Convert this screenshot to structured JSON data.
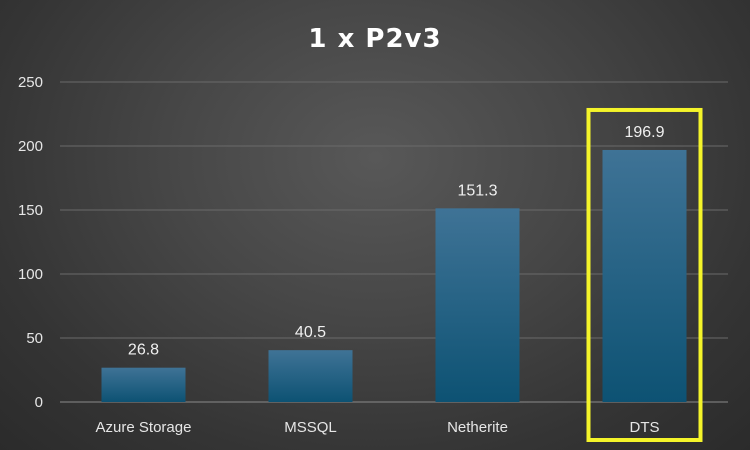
{
  "chart_data": {
    "type": "bar",
    "title": "1 x P2v3",
    "categories": [
      "Azure Storage",
      "MSSQL",
      "Netherite",
      "DTS"
    ],
    "values": [
      26.8,
      40.5,
      151.3,
      196.9
    ],
    "data_labels": [
      "26.8",
      "40.5",
      "151.3",
      "196.9"
    ],
    "xlabel": "",
    "ylabel": "",
    "ylim": [
      0,
      250
    ],
    "yticks": [
      0,
      50,
      100,
      150,
      200,
      250
    ],
    "grid": true,
    "legend": "none",
    "highlighted_category": "DTS",
    "colors": {
      "bar_top": "#3f7396",
      "bar_bottom": "#0d5273",
      "highlight": "#f4f42a",
      "text": "#e6e6e6"
    }
  }
}
